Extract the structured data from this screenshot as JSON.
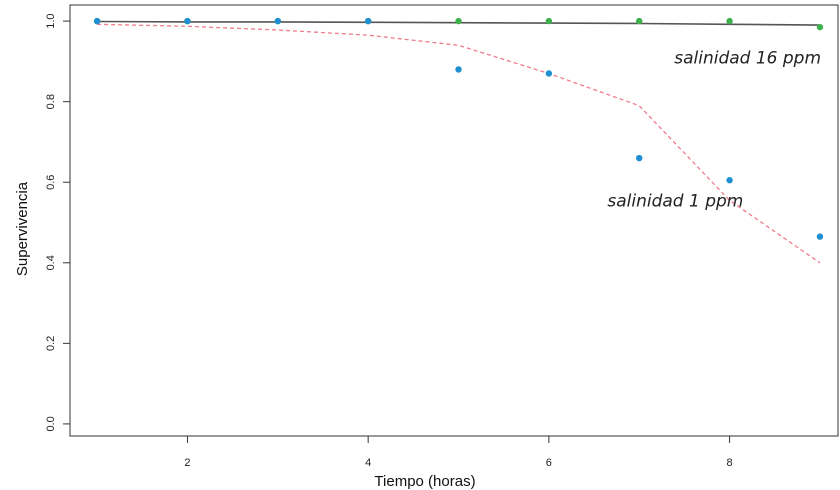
{
  "chart_data": {
    "type": "scatter",
    "xlabel": "Tiempo (horas)",
    "ylabel": "Supervivencia",
    "xlim": [
      0.7,
      9.2
    ],
    "ylim": [
      -0.03,
      1.04
    ],
    "x_ticks": [
      "2",
      "4",
      "6",
      "8"
    ],
    "y_ticks": [
      "0.0",
      "0.2",
      "0.4",
      "0.6",
      "0.8",
      "1.0"
    ],
    "grid": false,
    "series": [
      {
        "name": "salinidad 16 ppm",
        "color": "#3db04b",
        "points": [
          {
            "x": 1,
            "y": 1.0
          },
          {
            "x": 2,
            "y": 1.0
          },
          {
            "x": 3,
            "y": 1.0
          },
          {
            "x": 4,
            "y": 1.0
          },
          {
            "x": 5,
            "y": 1.0
          },
          {
            "x": 6,
            "y": 1.0
          },
          {
            "x": 7,
            "y": 1.0
          },
          {
            "x": 8,
            "y": 1.0
          },
          {
            "x": 9,
            "y": 0.985
          }
        ],
        "fit": {
          "color": "#555555",
          "style": "solid",
          "points": [
            {
              "x": 1,
              "y": 0.999
            },
            {
              "x": 2,
              "y": 0.998
            },
            {
              "x": 3,
              "y": 0.998
            },
            {
              "x": 4,
              "y": 0.997
            },
            {
              "x": 5,
              "y": 0.996
            },
            {
              "x": 6,
              "y": 0.995
            },
            {
              "x": 7,
              "y": 0.994
            },
            {
              "x": 8,
              "y": 0.992
            },
            {
              "x": 9,
              "y": 0.99
            }
          ]
        }
      },
      {
        "name": "salinidad 1 ppm",
        "color": "#1f8fd1",
        "points": [
          {
            "x": 1,
            "y": 1.0
          },
          {
            "x": 2,
            "y": 1.0
          },
          {
            "x": 3,
            "y": 1.0
          },
          {
            "x": 4,
            "y": 1.0
          },
          {
            "x": 5,
            "y": 0.88
          },
          {
            "x": 6,
            "y": 0.87
          },
          {
            "x": 7,
            "y": 0.66
          },
          {
            "x": 8,
            "y": 0.605
          },
          {
            "x": 9,
            "y": 0.465
          }
        ],
        "fit": {
          "color": "#f07c8c",
          "style": "dashed",
          "points": [
            {
              "x": 1,
              "y": 0.992
            },
            {
              "x": 2,
              "y": 0.987
            },
            {
              "x": 3,
              "y": 0.978
            },
            {
              "x": 4,
              "y": 0.965
            },
            {
              "x": 5,
              "y": 0.94
            },
            {
              "x": 6,
              "y": 0.87
            },
            {
              "x": 7,
              "y": 0.79
            },
            {
              "x": 8,
              "y": 0.555
            },
            {
              "x": 9,
              "y": 0.4
            }
          ]
        }
      }
    ],
    "annotations": [
      {
        "text": "salinidad 16 ppm",
        "x": 8.2,
        "y": 0.895
      },
      {
        "text": "salinidad 1 ppm",
        "x": 7.4,
        "y": 0.54
      }
    ]
  }
}
